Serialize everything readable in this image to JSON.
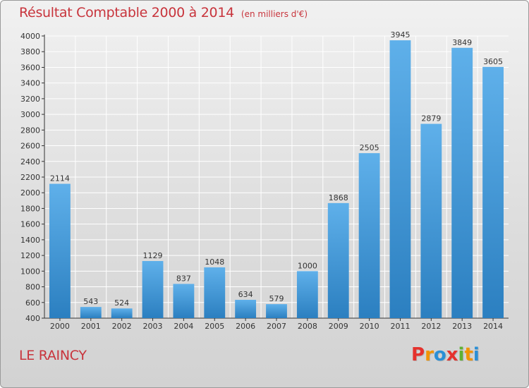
{
  "header": {
    "title": "Résultat Comptable 2000 à 2014",
    "unit": "(en milliers d'€)"
  },
  "footer": {
    "commune": "LE RAINCY",
    "logo_text": "Proxiti",
    "logo_colors": [
      "#e5322d",
      "#f29400",
      "#2a8fd6",
      "#e5322d",
      "#5fb233",
      "#f29400",
      "#2a8fd6"
    ]
  },
  "colors": {
    "title": "#c8343c",
    "bar_light": "#5fb0ea",
    "bar_dark": "#2b7fc0",
    "grid": "#ffffff",
    "axis": "#333333"
  },
  "chart_data": {
    "type": "bar",
    "title": "Résultat Comptable 2000 à 2014",
    "xlabel": "",
    "ylabel": "",
    "categories": [
      "2000",
      "2001",
      "2002",
      "2003",
      "2004",
      "2005",
      "2006",
      "2007",
      "2008",
      "2009",
      "2010",
      "2011",
      "2012",
      "2013",
      "2014"
    ],
    "values": [
      2114,
      543,
      524,
      1129,
      837,
      1048,
      634,
      579,
      1000,
      1868,
      2505,
      3945,
      2879,
      3849,
      3605
    ],
    "ylim": [
      400,
      4000
    ],
    "yticks": [
      400,
      600,
      800,
      1000,
      1200,
      1400,
      1600,
      1800,
      2000,
      2200,
      2400,
      2600,
      2800,
      3000,
      3200,
      3400,
      3600,
      3800,
      4000
    ],
    "grid": true,
    "legend": "none"
  }
}
